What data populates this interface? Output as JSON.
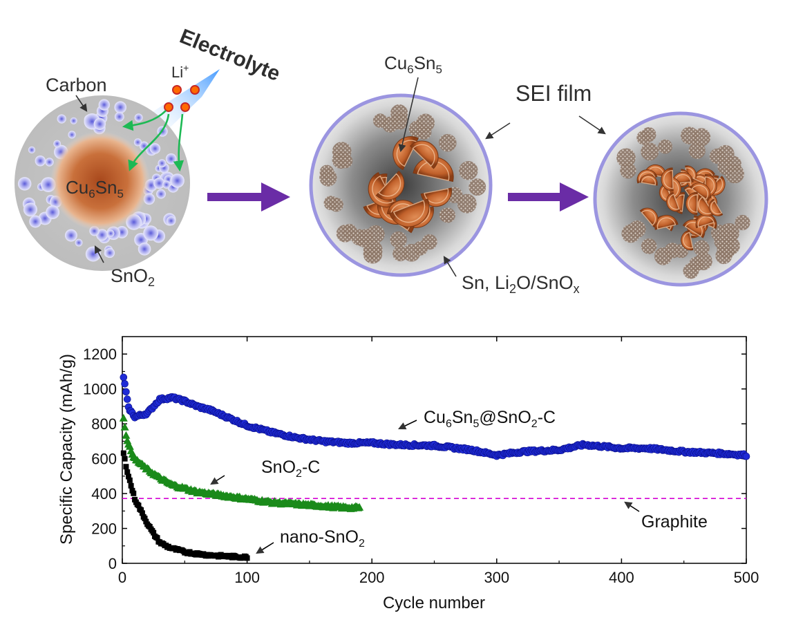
{
  "diagram": {
    "labels": {
      "electrolyte": "Electrolyte",
      "li_ion_base": "Li",
      "li_ion_sup": "+",
      "carbon": "Carbon",
      "core_a": "Cu",
      "core_sub1": "6",
      "core_b": "Sn",
      "core_sub2": "5",
      "sno2_a": "SnO",
      "sno2_sub": "2",
      "sei_film": "SEI film",
      "products_a": "Sn, Li",
      "products_sub1": "2",
      "products_b": "O/SnO",
      "products_sub2": "x"
    },
    "colors": {
      "process_arrow": "#6a2ca6",
      "ion_path": "#1db954",
      "sei_rim": "#9b95e0",
      "alloy": "#c0602a",
      "li_ion": "#ff6a00"
    }
  },
  "chart_data": {
    "type": "scatter",
    "title": "",
    "xlabel": "Cycle number",
    "ylabel": "Specific Capacity (mAh/g)",
    "xlim": [
      0,
      500
    ],
    "ylim": [
      0,
      1300
    ],
    "xticks": [
      0,
      100,
      200,
      300,
      400,
      500
    ],
    "yticks": [
      0,
      200,
      400,
      600,
      800,
      1000,
      1200
    ],
    "series": [
      {
        "label_a": "Cu",
        "label_sub1": "6",
        "label_b": "Sn",
        "label_sub2": "5",
        "label_c": "@SnO",
        "label_sub3": "2",
        "label_d": "-C",
        "marker": "circle",
        "color": "#1f2bd6",
        "x": [
          1,
          3,
          5,
          10,
          20,
          30,
          40,
          50,
          60,
          70,
          80,
          100,
          120,
          140,
          160,
          180,
          200,
          220,
          250,
          280,
          300,
          320,
          350,
          370,
          400,
          420,
          450,
          480,
          500
        ],
        "y": [
          1070,
          980,
          890,
          840,
          860,
          940,
          950,
          930,
          900,
          880,
          850,
          790,
          750,
          720,
          700,
          690,
          690,
          680,
          675,
          650,
          620,
          640,
          650,
          680,
          660,
          660,
          640,
          630,
          620
        ]
      },
      {
        "label_a": "SnO",
        "label_sub1": "2",
        "label_b": "-C",
        "marker": "triangle",
        "color": "#1a8a1a",
        "x": [
          1,
          3,
          5,
          10,
          20,
          30,
          40,
          50,
          60,
          70,
          80,
          100,
          120,
          140,
          160,
          180,
          190
        ],
        "y": [
          830,
          740,
          680,
          600,
          540,
          490,
          450,
          430,
          410,
          400,
          390,
          370,
          350,
          340,
          330,
          320,
          320
        ]
      },
      {
        "label_a": "nano-SnO",
        "label_sub1": "2",
        "marker": "square",
        "color": "#000000",
        "x": [
          1,
          3,
          5,
          8,
          10,
          15,
          20,
          25,
          30,
          35,
          40,
          50,
          60,
          70,
          80,
          90,
          100
        ],
        "y": [
          630,
          560,
          500,
          420,
          370,
          300,
          230,
          170,
          120,
          100,
          85,
          65,
          55,
          47,
          42,
          38,
          35
        ]
      }
    ],
    "reference_line": {
      "label": "Graphite",
      "y": 372,
      "color": "#d400d4",
      "style": "dashed"
    }
  }
}
